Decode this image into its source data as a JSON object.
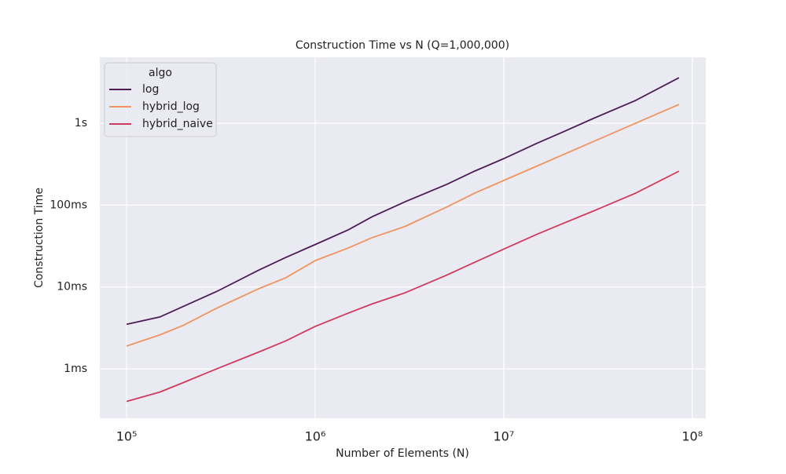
{
  "chart_data": {
    "type": "line",
    "title": "Construction Time vs N (Q=1,000,000)",
    "x_label": "Number of Elements (N)",
    "y_label": "Construction Time",
    "legend_title": "algo",
    "legend_position": "upper left",
    "log_x": true,
    "log_y": true,
    "grid": true,
    "x": [
      100000,
      150000,
      200000,
      300000,
      500000,
      700000,
      1000000,
      1500000,
      2000000,
      3000000,
      5000000,
      7000000,
      10000000,
      15000000,
      20000000,
      30000000,
      50000000,
      85000000
    ],
    "series": [
      {
        "name": "log",
        "color": "#4e1d56",
        "values": [
          0.0035,
          0.0043,
          0.0058,
          0.0088,
          0.016,
          0.023,
          0.033,
          0.05,
          0.072,
          0.11,
          0.18,
          0.26,
          0.37,
          0.57,
          0.76,
          1.15,
          1.9,
          3.6
        ]
      },
      {
        "name": "hybrid_log",
        "color": "#f0935e",
        "values": [
          0.0019,
          0.0026,
          0.0034,
          0.0055,
          0.0095,
          0.013,
          0.021,
          0.03,
          0.04,
          0.055,
          0.095,
          0.14,
          0.2,
          0.3,
          0.4,
          0.6,
          1.0,
          1.7
        ]
      },
      {
        "name": "hybrid_naive",
        "color": "#cf3a5f",
        "values": [
          0.0004,
          0.00052,
          0.00068,
          0.001,
          0.0016,
          0.0022,
          0.0033,
          0.0048,
          0.0062,
          0.0085,
          0.014,
          0.02,
          0.029,
          0.044,
          0.058,
          0.085,
          0.14,
          0.26
        ]
      }
    ],
    "xlim": [
      72100,
      118000000
    ],
    "xticks": [
      {
        "value": 100000,
        "label": "10⁵"
      },
      {
        "value": 1000000,
        "label": "10⁶"
      },
      {
        "value": 10000000,
        "label": "10⁷"
      },
      {
        "value": 100000000,
        "label": "10⁸"
      }
    ],
    "ylim": [
      0.000249,
      6.4
    ],
    "yticks": [
      {
        "value": 0.001,
        "label": "1ms"
      },
      {
        "value": 0.01,
        "label": "10ms"
      },
      {
        "value": 0.1,
        "label": "100ms"
      },
      {
        "value": 1,
        "label": "1s"
      }
    ]
  }
}
